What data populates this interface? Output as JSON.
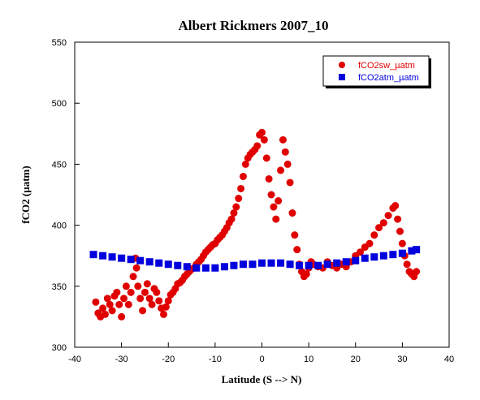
{
  "chart_data": {
    "type": "scatter",
    "title": "Albert Rickmers 2007_10",
    "xlabel": "Latitude (S --> N)",
    "ylabel": "fCO2 (µatm)",
    "xlim": [
      -40,
      40
    ],
    "ylim": [
      300,
      550
    ],
    "xticks": [
      "-40",
      "-30",
      "-20",
      "-10",
      "0",
      "10",
      "20",
      "30",
      "40"
    ],
    "yticks": [
      "300",
      "350",
      "400",
      "450",
      "500",
      "550"
    ],
    "grid": false,
    "legend_position": "top-right",
    "series": [
      {
        "name": "fCO2sw_µatm",
        "color": "#e00000",
        "marker": "circle",
        "points": [
          [
            -35.5,
            337
          ],
          [
            -35.0,
            328
          ],
          [
            -34.5,
            325
          ],
          [
            -34.0,
            332
          ],
          [
            -33.5,
            327
          ],
          [
            -33.0,
            340
          ],
          [
            -32.5,
            335
          ],
          [
            -32.0,
            330
          ],
          [
            -31.5,
            342
          ],
          [
            -31.0,
            345
          ],
          [
            -30.5,
            335
          ],
          [
            -30.0,
            325
          ],
          [
            -29.5,
            340
          ],
          [
            -29.0,
            350
          ],
          [
            -28.5,
            335
          ],
          [
            -28.0,
            345
          ],
          [
            -27.5,
            358
          ],
          [
            -27.0,
            373
          ],
          [
            -26.8,
            365
          ],
          [
            -26.5,
            350
          ],
          [
            -26.0,
            340
          ],
          [
            -25.5,
            330
          ],
          [
            -25.0,
            345
          ],
          [
            -24.5,
            352
          ],
          [
            -24.0,
            340
          ],
          [
            -23.5,
            335
          ],
          [
            -23.0,
            348
          ],
          [
            -22.5,
            345
          ],
          [
            -22.0,
            338
          ],
          [
            -21.5,
            332
          ],
          [
            -21.0,
            327
          ],
          [
            -20.5,
            333
          ],
          [
            -20.0,
            338
          ],
          [
            -19.5,
            343
          ],
          [
            -19.0,
            345
          ],
          [
            -18.5,
            348
          ],
          [
            -18.0,
            352
          ],
          [
            -17.5,
            353
          ],
          [
            -17.0,
            355
          ],
          [
            -16.5,
            358
          ],
          [
            -16.0,
            360
          ],
          [
            -15.5,
            362
          ],
          [
            -15.0,
            364
          ],
          [
            -14.5,
            365
          ],
          [
            -14.0,
            368
          ],
          [
            -13.5,
            370
          ],
          [
            -13.0,
            372
          ],
          [
            -12.5,
            375
          ],
          [
            -12.0,
            378
          ],
          [
            -11.5,
            380
          ],
          [
            -11.0,
            382
          ],
          [
            -10.5,
            384
          ],
          [
            -10.0,
            385
          ],
          [
            -9.5,
            388
          ],
          [
            -9.0,
            390
          ],
          [
            -8.5,
            392
          ],
          [
            -8.0,
            395
          ],
          [
            -7.5,
            398
          ],
          [
            -7.0,
            402
          ],
          [
            -6.5,
            405
          ],
          [
            -6.0,
            410
          ],
          [
            -5.5,
            415
          ],
          [
            -5.0,
            422
          ],
          [
            -4.5,
            430
          ],
          [
            -4.0,
            440
          ],
          [
            -3.5,
            450
          ],
          [
            -3.0,
            455
          ],
          [
            -2.5,
            458
          ],
          [
            -2.0,
            460
          ],
          [
            -1.5,
            462
          ],
          [
            -1.0,
            465
          ],
          [
            -0.5,
            474
          ],
          [
            0.0,
            476
          ],
          [
            0.5,
            470
          ],
          [
            1.0,
            455
          ],
          [
            1.5,
            438
          ],
          [
            2.0,
            425
          ],
          [
            2.5,
            415
          ],
          [
            3.0,
            405
          ],
          [
            3.5,
            420
          ],
          [
            4.0,
            445
          ],
          [
            4.5,
            470
          ],
          [
            5.0,
            460
          ],
          [
            5.5,
            450
          ],
          [
            6.0,
            435
          ],
          [
            6.5,
            410
          ],
          [
            7.0,
            392
          ],
          [
            7.5,
            380
          ],
          [
            8.0,
            368
          ],
          [
            8.5,
            362
          ],
          [
            9.0,
            358
          ],
          [
            9.5,
            360
          ],
          [
            10.0,
            365
          ],
          [
            10.5,
            370
          ],
          [
            11.0,
            368
          ],
          [
            12.0,
            366
          ],
          [
            13.0,
            365
          ],
          [
            14.0,
            370
          ],
          [
            15.0,
            367
          ],
          [
            16.0,
            365
          ],
          [
            17.0,
            368
          ],
          [
            18.0,
            366
          ],
          [
            19.0,
            370
          ],
          [
            20.0,
            375
          ],
          [
            21.0,
            378
          ],
          [
            22.0,
            382
          ],
          [
            23.0,
            385
          ],
          [
            24.0,
            392
          ],
          [
            25.0,
            398
          ],
          [
            26.0,
            402
          ],
          [
            27.0,
            408
          ],
          [
            28.0,
            414
          ],
          [
            28.5,
            416
          ],
          [
            29.0,
            405
          ],
          [
            29.5,
            395
          ],
          [
            30.0,
            385
          ],
          [
            30.5,
            375
          ],
          [
            31.0,
            368
          ],
          [
            31.5,
            362
          ],
          [
            32.0,
            360
          ],
          [
            32.5,
            358
          ],
          [
            33.0,
            362
          ]
        ]
      },
      {
        "name": "fCO2atm_µatm",
        "color": "#0000dd",
        "marker": "square",
        "points": [
          [
            -36.0,
            376
          ],
          [
            -34.0,
            375
          ],
          [
            -32.0,
            374
          ],
          [
            -30.0,
            373
          ],
          [
            -28.0,
            372
          ],
          [
            -26.0,
            371
          ],
          [
            -24.0,
            370
          ],
          [
            -22.0,
            369
          ],
          [
            -20.0,
            368
          ],
          [
            -18.0,
            367
          ],
          [
            -16.0,
            366
          ],
          [
            -14.0,
            365
          ],
          [
            -12.0,
            365
          ],
          [
            -10.0,
            365
          ],
          [
            -8.0,
            366
          ],
          [
            -6.0,
            367
          ],
          [
            -4.0,
            368
          ],
          [
            -2.0,
            368
          ],
          [
            0.0,
            369
          ],
          [
            2.0,
            369
          ],
          [
            4.0,
            369
          ],
          [
            6.0,
            368
          ],
          [
            8.0,
            367
          ],
          [
            10.0,
            367
          ],
          [
            12.0,
            367
          ],
          [
            14.0,
            368
          ],
          [
            16.0,
            369
          ],
          [
            18.0,
            370
          ],
          [
            20.0,
            371
          ],
          [
            22.0,
            373
          ],
          [
            24.0,
            374
          ],
          [
            26.0,
            375
          ],
          [
            28.0,
            376
          ],
          [
            30.0,
            377
          ],
          [
            32.0,
            379
          ],
          [
            33.0,
            380
          ]
        ]
      }
    ]
  }
}
